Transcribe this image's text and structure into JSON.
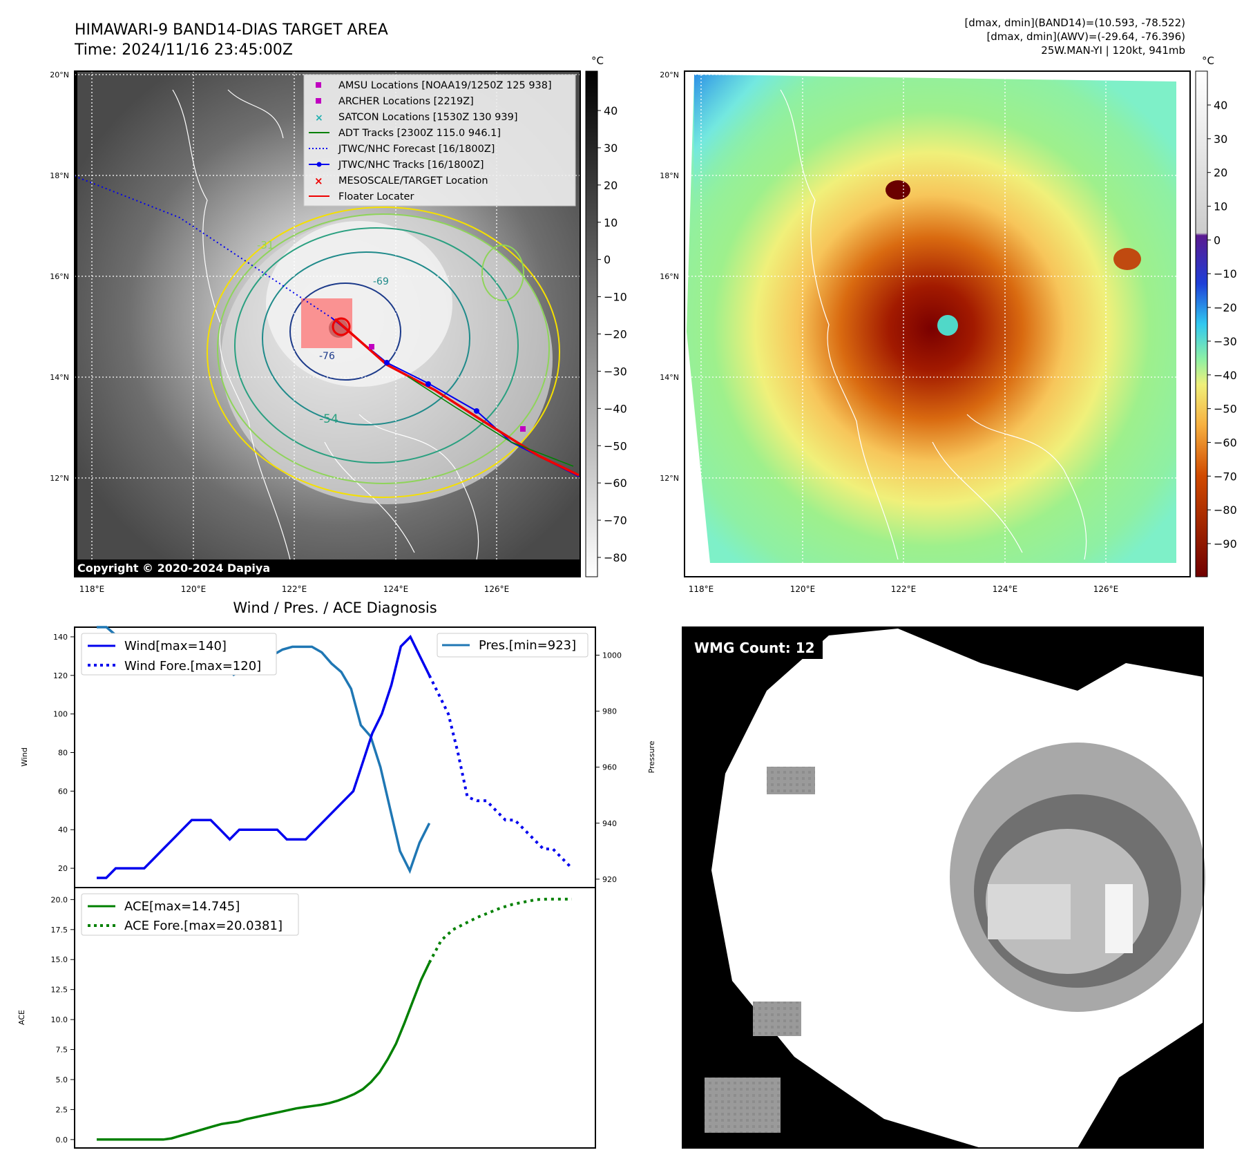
{
  "header": {
    "title_line1": "HIMAWARI-9 BAND14-DIAS TARGET AREA",
    "title_line2": "Time: 2024/11/16 23:45:00Z",
    "info_line1": "[dmax, dmin](BAND14)=(10.593, -78.522)",
    "info_line2": "[dmax, dmin](AWV)=(-29.64, -76.396)",
    "info_line3": "25W.MAN-YI | 120kt, 941mb"
  },
  "map_axes": {
    "lon_labels": [
      "118°E",
      "120°E",
      "122°E",
      "124°E",
      "126°E"
    ],
    "lat_labels": [
      "20°N",
      "18°N",
      "16°N",
      "14°N",
      "12°N"
    ]
  },
  "ir_panel": {
    "copyright": "Copyright © 2020-2024 Dapiya",
    "colorbar_unit": "°C",
    "colorbar_ticks": [
      "40",
      "30",
      "20",
      "10",
      "0",
      "−10",
      "−20",
      "−30",
      "−40",
      "−50",
      "−60",
      "−70",
      "−80"
    ],
    "contour_labels": [
      "-31",
      "-54",
      "-76",
      "-69"
    ],
    "legend": [
      "AMSU Locations [NOAA19/1250Z 125 938]",
      "ARCHER Locations [2219Z]",
      "SATCON Locations [1530Z 130 939]",
      "ADT Tracks [2300Z 115.0 946.1]",
      "JTWC/NHC Forecast [16/1800Z]",
      "JTWC/NHC Tracks [16/1800Z]",
      "MESOSCALE/TARGET Location",
      "Floater Locater"
    ]
  },
  "wv_panel": {
    "colorbar_unit": "°C",
    "colorbar_ticks": [
      "40",
      "30",
      "20",
      "10",
      "0",
      "−10",
      "−20",
      "−30",
      "−40",
      "−50",
      "−60",
      "−70",
      "−80",
      "−90"
    ]
  },
  "diagnosis": {
    "title": "Wind / Pres. / ACE Diagnosis",
    "wind_ylabel": "Wind",
    "pres_ylabel": "Pressure",
    "ace_ylabel": "ACE",
    "wind_ticks": [
      "20",
      "40",
      "60",
      "80",
      "100",
      "120",
      "140"
    ],
    "pres_ticks": [
      "920",
      "940",
      "960",
      "980",
      "1000"
    ],
    "ace_ticks": [
      "0.0",
      "2.5",
      "5.0",
      "7.5",
      "10.0",
      "12.5",
      "15.0",
      "17.5",
      "20.0"
    ],
    "legend_wind": "Wind[max=140]",
    "legend_wind_fore": "Wind Fore.[max=120]",
    "legend_pres": "Pres.[min=923]",
    "legend_ace": "ACE[max=14.745]",
    "legend_ace_fore": "ACE Fore.[max=20.0381]"
  },
  "wmg_panel": {
    "count_label": "WMG Count: 12"
  },
  "colors": {
    "wind": "#0000ee",
    "pressure": "#1f77b4",
    "ace": "#008000",
    "track": "#ee0000"
  },
  "chart_data": [
    {
      "type": "line",
      "title": "Wind / Pres. / ACE Diagnosis",
      "ylabel": "Wind",
      "ylim": [
        10,
        145
      ],
      "series": [
        {
          "name": "Wind[max=140]",
          "values": [
            15,
            15,
            20,
            20,
            20,
            20,
            25,
            30,
            35,
            40,
            45,
            45,
            45,
            40,
            35,
            40,
            40,
            40,
            40,
            40,
            35,
            35,
            35,
            40,
            45,
            50,
            55,
            60,
            75,
            90,
            100,
            115,
            135,
            140,
            130,
            120
          ]
        },
        {
          "name": "Wind Fore.[max=120]",
          "values": [
            120,
            110,
            100,
            80,
            57,
            55,
            55,
            50,
            45,
            45,
            40,
            35,
            30,
            30,
            25,
            20
          ]
        }
      ]
    },
    {
      "type": "line",
      "ylabel": "Pressure",
      "ylim": [
        917,
        1010
      ],
      "series": [
        {
          "name": "Pres.[min=923]",
          "values": [
            1010,
            1010,
            1007,
            1007,
            1007,
            1007,
            1007,
            1004,
            1004,
            1002,
            998,
            999,
            1000,
            997,
            993,
            995,
            996,
            995,
            1000,
            1002,
            1003,
            1003,
            1003,
            1001,
            997,
            994,
            988,
            975,
            971,
            960,
            945,
            930,
            923,
            933,
            940
          ]
        }
      ]
    },
    {
      "type": "line",
      "ylabel": "ACE",
      "ylim": [
        -0.7,
        21
      ],
      "series": [
        {
          "name": "ACE[max=14.745]",
          "values": [
            0,
            0,
            0,
            0,
            0,
            0,
            0,
            0,
            0,
            0.1,
            0.3,
            0.5,
            0.7,
            0.9,
            1.1,
            1.3,
            1.4,
            1.5,
            1.7,
            1.85,
            2.0,
            2.15,
            2.3,
            2.45,
            2.6,
            2.7,
            2.8,
            2.9,
            3.05,
            3.25,
            3.5,
            3.8,
            4.2,
            4.8,
            5.6,
            6.7,
            8.0,
            9.7,
            11.5,
            13.3,
            14.745
          ]
        },
        {
          "name": "ACE Fore.[max=20.0381]",
          "values": [
            14.745,
            16.6,
            17.5,
            18.0,
            18.5,
            18.9,
            19.3,
            19.6,
            19.8,
            20.0,
            20.0381,
            20.0381,
            20.0381
          ]
        }
      ]
    }
  ]
}
